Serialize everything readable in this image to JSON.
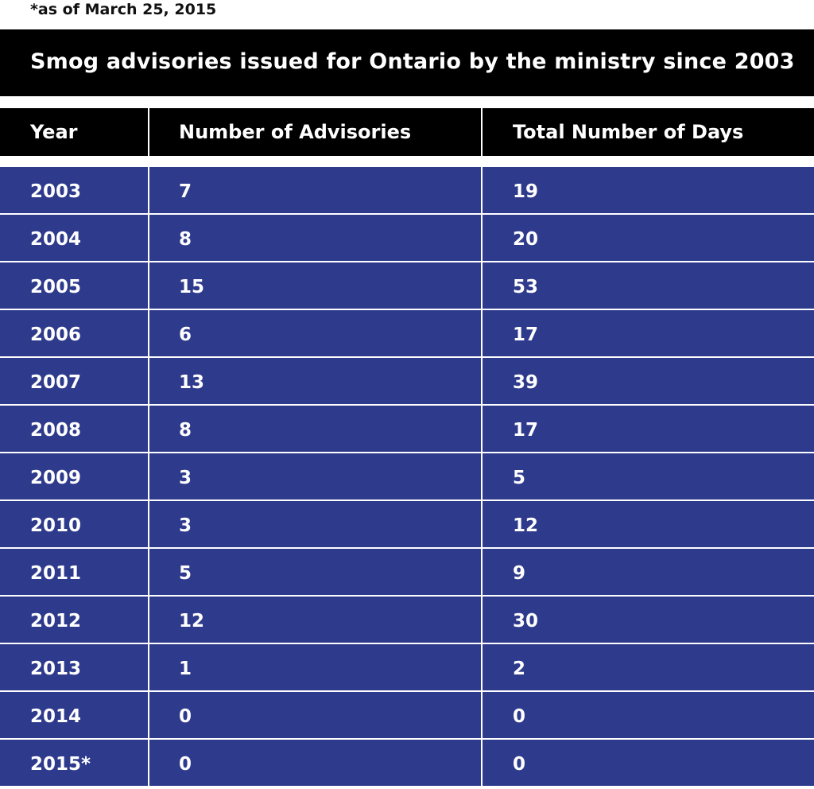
{
  "footnote": "*as of March 25, 2015",
  "chart_data": {
    "type": "table",
    "title": "Smog advisories issued for Ontario by the ministry since 2003",
    "columns": [
      "Year",
      "Number of Advisories",
      "Total Number of Days"
    ],
    "rows": [
      [
        "2003",
        "7",
        "19"
      ],
      [
        "2004",
        "8",
        "20"
      ],
      [
        "2005",
        "15",
        "53"
      ],
      [
        "2006",
        "6",
        "17"
      ],
      [
        "2007",
        "13",
        "39"
      ],
      [
        "2008",
        "8",
        "17"
      ],
      [
        "2009",
        "3",
        "5"
      ],
      [
        "2010",
        "3",
        "12"
      ],
      [
        "2011",
        "5",
        "9"
      ],
      [
        "2012",
        "12",
        "30"
      ],
      [
        "2013",
        "1",
        "2"
      ],
      [
        "2014",
        "0",
        "0"
      ],
      [
        "2015*",
        "0",
        "0"
      ]
    ]
  },
  "colors": {
    "header_background": "#000000",
    "row_background": "#2e3a8c",
    "text": "#ffffff",
    "grid_lines": "#ffffff"
  }
}
